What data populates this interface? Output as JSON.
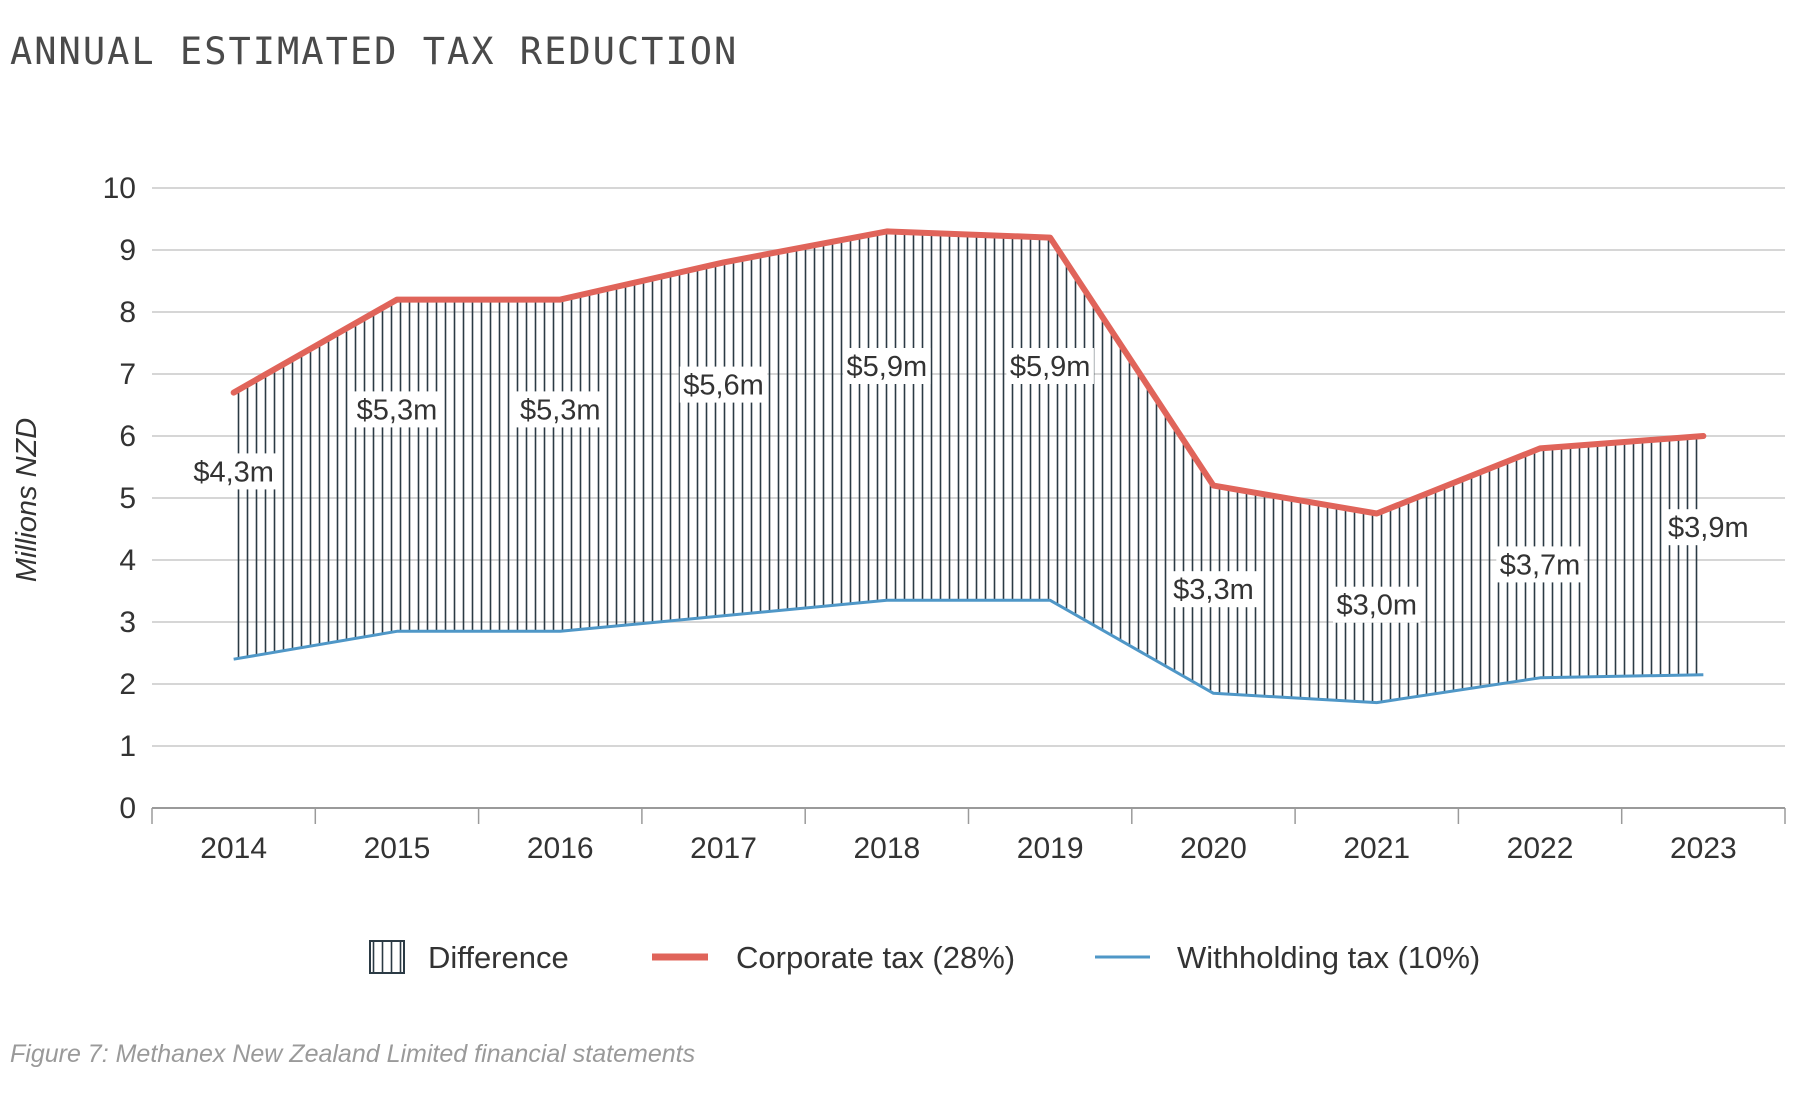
{
  "title": "ANNUAL ESTIMATED TAX REDUCTION",
  "caption": "Figure 7: Methanex New Zealand Limited financial statements",
  "colors": {
    "corporate": "#e0645a",
    "withholding": "#4f97c7",
    "hatch": "#2b3a44",
    "grid": "#c8c8c8",
    "axis": "#9a9a9a"
  },
  "chart_data": {
    "type": "area",
    "categories": [
      "2014",
      "2015",
      "2016",
      "2017",
      "2018",
      "2019",
      "2020",
      "2021",
      "2022",
      "2023"
    ],
    "series": [
      {
        "name": "Corporate tax (28%)",
        "values": [
          6.7,
          8.2,
          8.2,
          8.8,
          9.3,
          9.2,
          5.2,
          4.75,
          5.8,
          6.0
        ]
      },
      {
        "name": "Withholding tax (10%)",
        "values": [
          2.4,
          2.85,
          2.85,
          3.1,
          3.35,
          3.35,
          1.85,
          1.7,
          2.1,
          2.15
        ]
      }
    ],
    "difference": {
      "name": "Difference",
      "labels": [
        "$4,3m",
        "$5,3m",
        "$5,3m",
        "$5,6m",
        "$5,9m",
        "$5,9m",
        "$3,3m",
        "$3,0m",
        "$3,7m",
        "$3,9m"
      ]
    },
    "ylabel": "Millions NZD",
    "ylim": [
      0,
      10
    ],
    "yticks": [
      "0",
      "1",
      "2",
      "3",
      "4",
      "5",
      "6",
      "7",
      "8",
      "9",
      "10"
    ],
    "grid": true,
    "legend_position": "bottom"
  }
}
